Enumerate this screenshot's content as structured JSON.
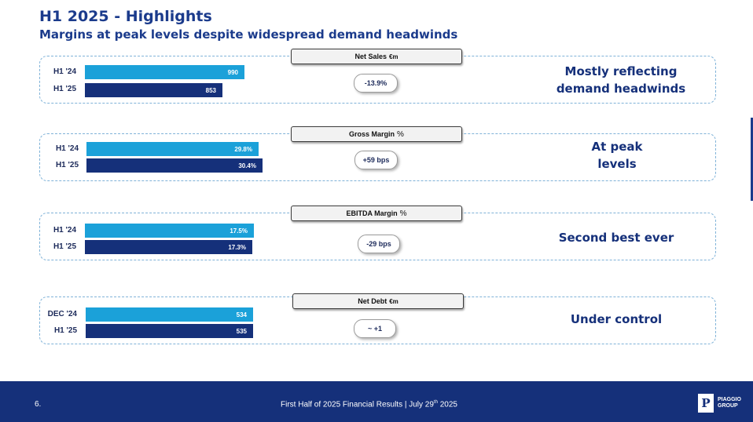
{
  "header": {
    "title": "H1 2025 - Highlights",
    "subtitle": "Margins at peak levels despite widespread demand headwinds"
  },
  "panels": [
    {
      "tag": "Net Sales",
      "unit": "€m",
      "row_labels": [
        "H1 '24",
        "H1 '25"
      ],
      "values": [
        990,
        853
      ],
      "value_labels": [
        "990",
        "853"
      ],
      "change": "-13.9%",
      "comment_lines": [
        "Mostly reflecting",
        "demand headwinds"
      ]
    },
    {
      "tag": "Gross Margin",
      "unit": "%",
      "row_labels": [
        "H1 '24",
        "H1 '25"
      ],
      "values": [
        29.8,
        30.4
      ],
      "value_labels": [
        "29.8%",
        "30.4%"
      ],
      "change": "+59 bps",
      "comment_lines": [
        "At peak",
        "levels"
      ]
    },
    {
      "tag": "EBITDA Margin",
      "unit": "%",
      "row_labels": [
        "H1 '24",
        "H1 '25"
      ],
      "values": [
        17.5,
        17.3
      ],
      "value_labels": [
        "17.5%",
        "17.3%"
      ],
      "change": "-29 bps",
      "comment_lines": [
        "Second best ever"
      ]
    },
    {
      "tag": "Net Debt",
      "unit": "€m",
      "row_labels": [
        "DEC '24",
        "H1 '25"
      ],
      "values": [
        534,
        535
      ],
      "value_labels": [
        "534",
        "535"
      ],
      "change": "~ +1",
      "comment_lines": [
        "Under control"
      ]
    }
  ],
  "colors": {
    "brand_navy": "#15307a",
    "bar_light": "#1ba1d9",
    "bar_dark": "#15307a",
    "title": "#1b3b8c"
  },
  "footer": {
    "page_number": "6.",
    "text_main": "First Half of 2025 Financial Results | July 29",
    "text_sup": "th",
    "text_year": " 2025",
    "logo_letter": "P",
    "logo_name_line1": "PIAGGIO",
    "logo_name_line2": "GROUP"
  }
}
